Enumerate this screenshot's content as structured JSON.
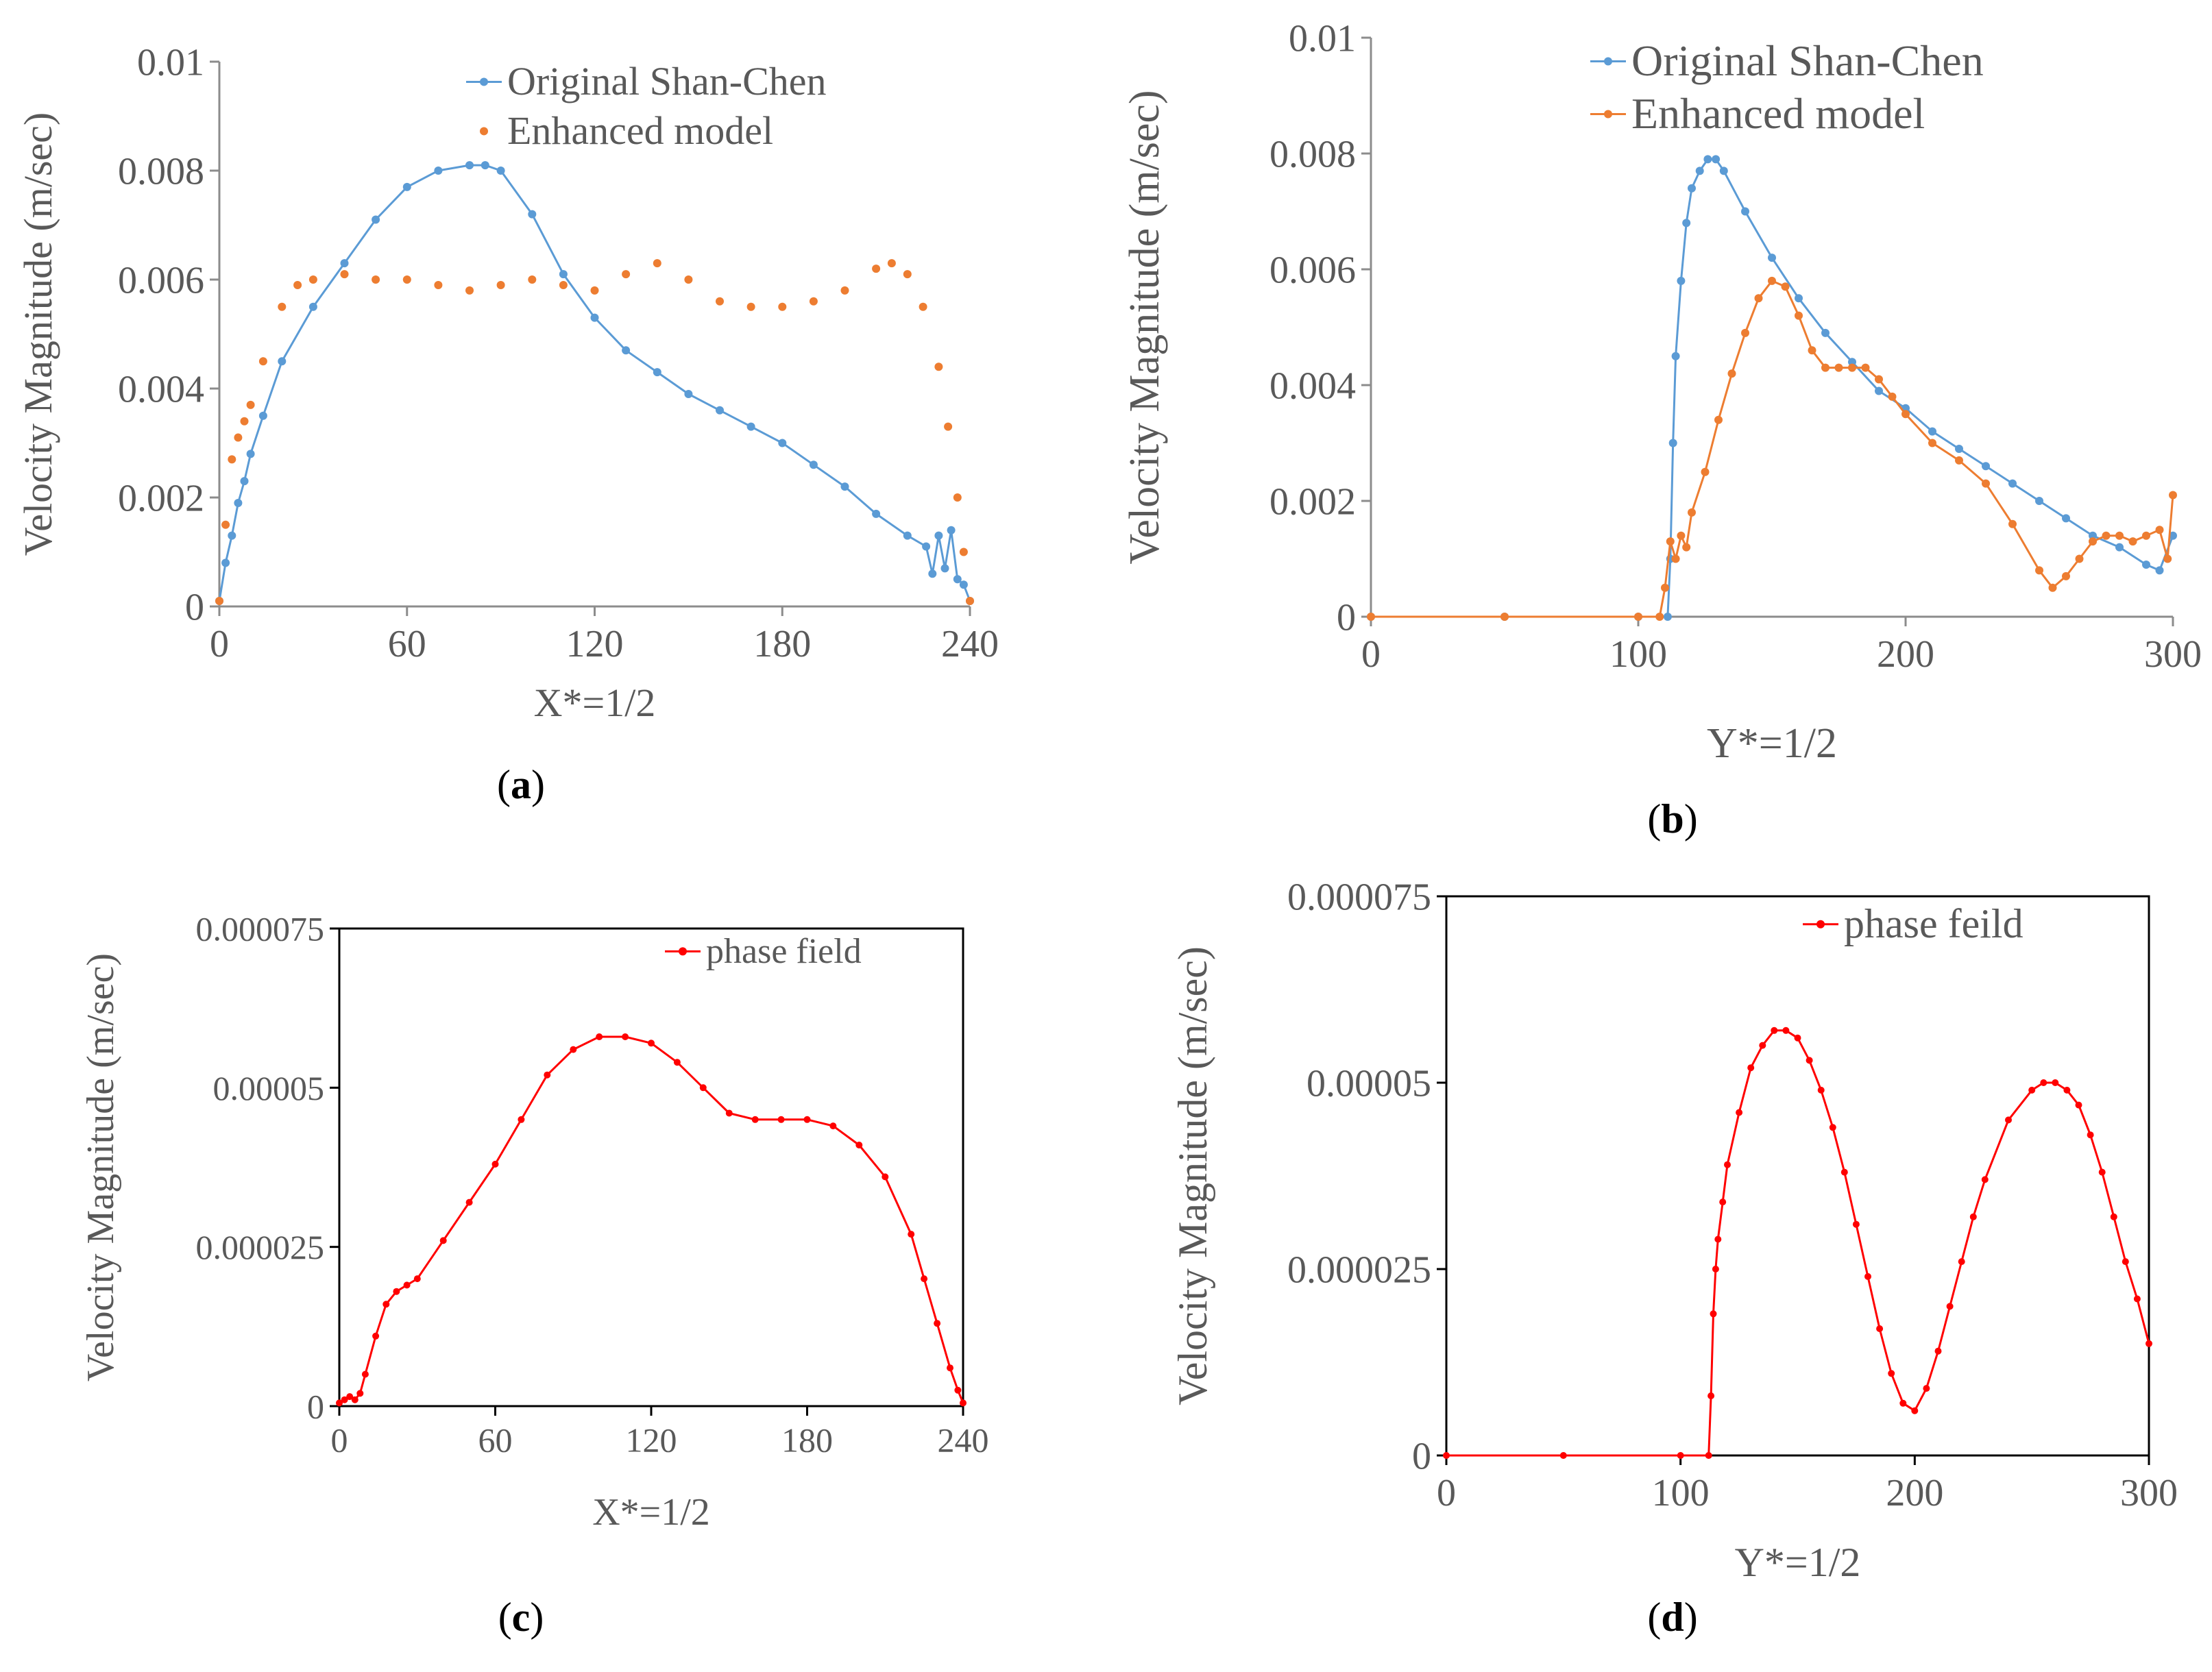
{
  "figure": {
    "panel_labels": [
      "a",
      "b",
      "c",
      "d"
    ]
  },
  "colors": {
    "blue": "#5b9bd5",
    "orange": "#ed7d31",
    "red": "#ff0000",
    "axis": "#8c8c8c",
    "text": "#595959"
  },
  "chart_data": [
    {
      "id": "a",
      "type": "scatter",
      "xlabel": "X*=1/2",
      "ylabel": "Velocity Magnitude (m/sec)",
      "xlim": [
        0,
        240
      ],
      "ylim": [
        0,
        0.01
      ],
      "xticks": [
        0,
        60,
        120,
        180,
        240
      ],
      "xtick_labels": [
        "0",
        "60",
        "120",
        "180",
        "240"
      ],
      "yticks": [
        0,
        0.002,
        0.004,
        0.006,
        0.008,
        0.01
      ],
      "ytick_labels": [
        "0",
        "0.002",
        "0.004",
        "0.006",
        "0.008",
        "0.01"
      ],
      "legend": "top-right",
      "frame": "axes",
      "series": [
        {
          "name": "Original Shan-Chen",
          "color": "#5b9bd5",
          "style": "line-markers",
          "x": [
            0,
            2,
            4,
            6,
            8,
            10,
            14,
            20,
            30,
            40,
            50,
            60,
            70,
            80,
            85,
            90,
            100,
            110,
            120,
            130,
            140,
            150,
            160,
            170,
            180,
            190,
            200,
            210,
            220,
            226,
            228,
            230,
            232,
            234,
            236,
            238,
            240
          ],
          "y": [
            0.0001,
            0.0008,
            0.0013,
            0.0019,
            0.0023,
            0.0028,
            0.0035,
            0.0045,
            0.0055,
            0.0063,
            0.0071,
            0.0077,
            0.008,
            0.0081,
            0.0081,
            0.008,
            0.0072,
            0.0061,
            0.0053,
            0.0047,
            0.0043,
            0.0039,
            0.0036,
            0.0033,
            0.003,
            0.0026,
            0.0022,
            0.0017,
            0.0013,
            0.0011,
            0.0006,
            0.0013,
            0.0007,
            0.0014,
            0.0005,
            0.0004,
            0.0001
          ]
        },
        {
          "name": "Enhanced model",
          "color": "#ed7d31",
          "style": "markers",
          "x": [
            0,
            2,
            4,
            6,
            8,
            10,
            14,
            20,
            25,
            30,
            40,
            50,
            60,
            70,
            80,
            90,
            100,
            110,
            120,
            130,
            140,
            150,
            160,
            170,
            180,
            190,
            200,
            210,
            215,
            220,
            225,
            230,
            233,
            236,
            238,
            240
          ],
          "y": [
            0.0001,
            0.0015,
            0.0027,
            0.0031,
            0.0034,
            0.0037,
            0.0045,
            0.0055,
            0.0059,
            0.006,
            0.0061,
            0.006,
            0.006,
            0.0059,
            0.0058,
            0.0059,
            0.006,
            0.0059,
            0.0058,
            0.0061,
            0.0063,
            0.006,
            0.0056,
            0.0055,
            0.0055,
            0.0056,
            0.0058,
            0.0062,
            0.0063,
            0.0061,
            0.0055,
            0.0044,
            0.0033,
            0.002,
            0.001,
            0.0001
          ]
        }
      ]
    },
    {
      "id": "b",
      "type": "line",
      "xlabel": "Y*=1/2",
      "ylabel": "Velocity Magnitude (m/sec)",
      "xlim": [
        0,
        300
      ],
      "ylim": [
        0,
        0.01
      ],
      "xticks": [
        0,
        100,
        200,
        300
      ],
      "xtick_labels": [
        "0",
        "100",
        "200",
        "300"
      ],
      "yticks": [
        0,
        0.002,
        0.004,
        0.006,
        0.008,
        0.01
      ],
      "ytick_labels": [
        "0",
        "0.002",
        "0.004",
        "0.006",
        "0.008",
        "0.01"
      ],
      "legend": "top-right",
      "frame": "axes",
      "series": [
        {
          "name": "Original Shan-Chen",
          "color": "#5b9bd5",
          "style": "line-markers",
          "x": [
            0,
            50,
            100,
            111,
            112,
            113,
            114,
            116,
            118,
            120,
            123,
            126,
            129,
            132,
            140,
            150,
            160,
            170,
            180,
            190,
            200,
            210,
            220,
            230,
            240,
            250,
            260,
            270,
            280,
            290,
            295,
            300
          ],
          "y": [
            0,
            0,
            0,
            0,
            0.001,
            0.003,
            0.0045,
            0.0058,
            0.0068,
            0.0074,
            0.0077,
            0.0079,
            0.0079,
            0.0077,
            0.007,
            0.0062,
            0.0055,
            0.0049,
            0.0044,
            0.0039,
            0.0036,
            0.0032,
            0.0029,
            0.0026,
            0.0023,
            0.002,
            0.0017,
            0.0014,
            0.0012,
            0.0009,
            0.0008,
            0.0014
          ]
        },
        {
          "name": "Enhanced model",
          "color": "#ed7d31",
          "style": "line-markers",
          "x": [
            0,
            50,
            100,
            108,
            110,
            112,
            114,
            116,
            118,
            120,
            125,
            130,
            135,
            140,
            145,
            150,
            155,
            160,
            165,
            170,
            175,
            180,
            185,
            190,
            195,
            200,
            210,
            220,
            230,
            240,
            250,
            255,
            260,
            265,
            270,
            275,
            280,
            285,
            290,
            295,
            298,
            300
          ],
          "y": [
            0,
            0,
            0,
            0,
            0.0005,
            0.0013,
            0.001,
            0.0014,
            0.0012,
            0.0018,
            0.0025,
            0.0034,
            0.0042,
            0.0049,
            0.0055,
            0.0058,
            0.0057,
            0.0052,
            0.0046,
            0.0043,
            0.0043,
            0.0043,
            0.0043,
            0.0041,
            0.0038,
            0.0035,
            0.003,
            0.0027,
            0.0023,
            0.0016,
            0.0008,
            0.0005,
            0.0007,
            0.001,
            0.0013,
            0.0014,
            0.0014,
            0.0013,
            0.0014,
            0.0015,
            0.001,
            0.0021
          ]
        }
      ]
    },
    {
      "id": "c",
      "type": "line",
      "xlabel": "X*=1/2",
      "ylabel": "Velocity Magnitude (m/sec)",
      "xlim": [
        0,
        240
      ],
      "ylim": [
        0,
        7.5e-05
      ],
      "xticks": [
        0,
        60,
        120,
        180,
        240
      ],
      "xtick_labels": [
        "0",
        "60",
        "120",
        "180",
        "240"
      ],
      "yticks": [
        0,
        2.5e-05,
        5e-05,
        7.5e-05
      ],
      "ytick_labels": [
        "0",
        "0.000025",
        "0.00005",
        "0.000075"
      ],
      "legend": "top-right",
      "frame": "box",
      "series": [
        {
          "name": "phase field",
          "color": "#ff0000",
          "style": "line-markers",
          "x": [
            0,
            2,
            4,
            6,
            8,
            10,
            14,
            18,
            22,
            26,
            30,
            40,
            50,
            60,
            70,
            80,
            90,
            100,
            110,
            120,
            130,
            140,
            150,
            160,
            170,
            180,
            190,
            200,
            210,
            220,
            225,
            230,
            235,
            238,
            240
          ],
          "y": [
            5e-07,
            1e-06,
            1.5e-06,
            1e-06,
            2e-06,
            5e-06,
            1.1e-05,
            1.6e-05,
            1.8e-05,
            1.9e-05,
            2e-05,
            2.6e-05,
            3.2e-05,
            3.8e-05,
            4.5e-05,
            5.2e-05,
            5.6e-05,
            5.8e-05,
            5.8e-05,
            5.7e-05,
            5.4e-05,
            5e-05,
            4.6e-05,
            4.5e-05,
            4.5e-05,
            4.5e-05,
            4.4e-05,
            4.1e-05,
            3.6e-05,
            2.7e-05,
            2e-05,
            1.3e-05,
            6e-06,
            2.5e-06,
            5e-07
          ]
        }
      ]
    },
    {
      "id": "d",
      "type": "line",
      "xlabel": "Y*=1/2",
      "ylabel": "Velocity Magnitude (m/sec)",
      "xlim": [
        0,
        300
      ],
      "ylim": [
        0,
        7.5e-05
      ],
      "xticks": [
        0,
        100,
        200,
        300
      ],
      "xtick_labels": [
        "0",
        "100",
        "200",
        "300"
      ],
      "yticks": [
        0,
        2.5e-05,
        5e-05,
        7.5e-05
      ],
      "ytick_labels": [
        "0",
        "0.000025",
        "0.00005",
        "0.000075"
      ],
      "legend": "top-right",
      "frame": "box",
      "series": [
        {
          "name": "phase feild",
          "color": "#ff0000",
          "style": "line-markers",
          "x": [
            0,
            50,
            100,
            112,
            113,
            114,
            115,
            116,
            118,
            120,
            125,
            130,
            135,
            140,
            145,
            150,
            155,
            160,
            165,
            170,
            175,
            180,
            185,
            190,
            195,
            200,
            205,
            210,
            215,
            220,
            225,
            230,
            240,
            250,
            255,
            260,
            265,
            270,
            275,
            280,
            285,
            290,
            295,
            300
          ],
          "y": [
            0,
            0,
            0,
            0,
            8e-06,
            1.9e-05,
            2.5e-05,
            2.9e-05,
            3.4e-05,
            3.9e-05,
            4.6e-05,
            5.2e-05,
            5.5e-05,
            5.7e-05,
            5.7e-05,
            5.6e-05,
            5.3e-05,
            4.9e-05,
            4.4e-05,
            3.8e-05,
            3.1e-05,
            2.4e-05,
            1.7e-05,
            1.1e-05,
            7e-06,
            6e-06,
            9e-06,
            1.4e-05,
            2e-05,
            2.6e-05,
            3.2e-05,
            3.7e-05,
            4.5e-05,
            4.9e-05,
            5e-05,
            5e-05,
            4.9e-05,
            4.7e-05,
            4.3e-05,
            3.8e-05,
            3.2e-05,
            2.6e-05,
            2.1e-05,
            1.5e-05
          ]
        }
      ]
    }
  ]
}
